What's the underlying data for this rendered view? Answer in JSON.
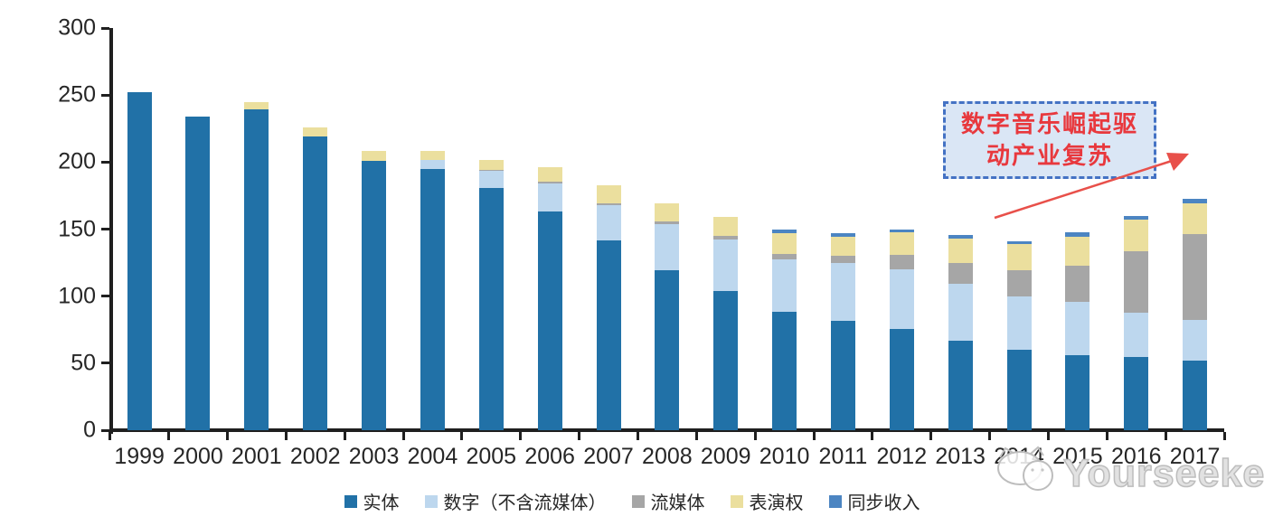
{
  "watermark": {
    "brand": "Yourseeker",
    "logo": "mascot-outline-logo"
  },
  "annotation": {
    "line1": "数字音乐崛起驱",
    "line2": "动产业复苏",
    "box_border_color": "#4472c4",
    "box_fill_color": "#dae6f5",
    "text_color": "#e8383d",
    "arrow_color": "#e8504a"
  },
  "chart_data": {
    "type": "bar",
    "stacked": true,
    "title": "",
    "xlabel": "",
    "ylabel": "",
    "categories": [
      "1999",
      "2000",
      "2001",
      "2002",
      "2003",
      "2004",
      "2005",
      "2006",
      "2007",
      "2008",
      "2009",
      "2010",
      "2011",
      "2012",
      "2013",
      "2014",
      "2015",
      "2016",
      "2017"
    ],
    "series": [
      {
        "name": "实体",
        "color": "#2171a7",
        "values": [
          252,
          234,
          239,
          219,
          201,
          195,
          181,
          163,
          141.5,
          119,
          104,
          88,
          81.5,
          75.5,
          67,
          60,
          56,
          54.5,
          52
        ]
      },
      {
        "name": "数字（不含流媒体）",
        "color": "#bdd7ee",
        "values": [
          0,
          0,
          0,
          0,
          0,
          6.5,
          12.5,
          21,
          26.5,
          35,
          38,
          39.5,
          43.5,
          44.5,
          42.5,
          40,
          40,
          33,
          30
        ]
      },
      {
        "name": "流媒体",
        "color": "#a6a6a6",
        "values": [
          0,
          0,
          0,
          0,
          0,
          0,
          1,
          1.5,
          1.5,
          1.5,
          3,
          4,
          5,
          10.5,
          15.5,
          19,
          27,
          46,
          64
        ]
      },
      {
        "name": "表演权",
        "color": "#ebdf9e",
        "values": [
          0,
          0,
          5.5,
          7,
          7.5,
          7,
          7,
          10.5,
          13,
          13.5,
          14,
          15.5,
          14.5,
          17,
          18,
          20,
          21,
          23.5,
          23.5
        ]
      },
      {
        "name": "同步收入",
        "color": "#4c85c2",
        "values": [
          0,
          0,
          0,
          0,
          0,
          0,
          0,
          0,
          0,
          0,
          0,
          2.5,
          2.5,
          2.5,
          2.5,
          2,
          3.5,
          3,
          3
        ]
      }
    ],
    "ylim": [
      0,
      300
    ],
    "yticks": [
      0,
      50,
      100,
      150,
      200,
      250,
      300
    ],
    "grid": false,
    "legend_position": "bottom",
    "axis_color": "#1f1f1f"
  }
}
